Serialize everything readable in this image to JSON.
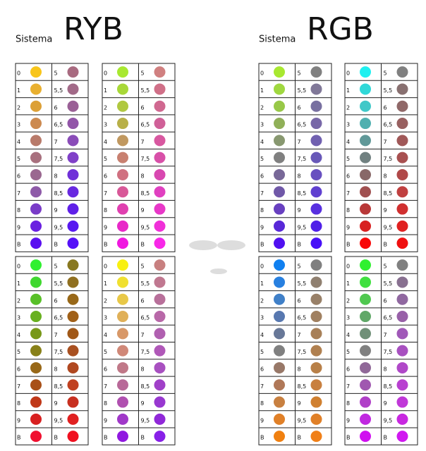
{
  "headings": [
    {
      "prefix": "Sistema",
      "title": "RYB"
    },
    {
      "prefix": "Sistema",
      "title": "RGB"
    }
  ],
  "labels_a": [
    "0",
    "1",
    "2",
    "3",
    "4",
    "5",
    "6",
    "7",
    "8",
    "9",
    "B"
  ],
  "labels_b": [
    "5",
    "5,5",
    "6",
    "6,5",
    "7",
    "7,5",
    "8",
    "8,5",
    "9",
    "9,5",
    "B"
  ],
  "tables": [
    {
      "colors_a": [
        "#f8c51a",
        "#e9b030",
        "#dca036",
        "#cc8a50",
        "#b87a6a",
        "#a8707e",
        "#9a6890",
        "#8e5aa8",
        "#7a3cc8",
        "#6a20e0",
        "#5a10f0"
      ],
      "colors_b": [
        "#a86a80",
        "#a26a88",
        "#9a6096",
        "#9255a8",
        "#8a4cb8",
        "#8040c8",
        "#7030d8",
        "#6828e0",
        "#6020e8",
        "#5818f0",
        "#5510f8"
      ]
    },
    {
      "colors_a": [
        "#a8e830",
        "#a8d838",
        "#b0c840",
        "#b8b048",
        "#c09860",
        "#c88070",
        "#d07080",
        "#d85898",
        "#e040b0",
        "#e828c8",
        "#f018e0"
      ],
      "colors_b": [
        "#d08080",
        "#d07088",
        "#d06890",
        "#d06098",
        "#d858a0",
        "#d850a8",
        "#d848b0",
        "#e040c0",
        "#e838c8",
        "#f030d8",
        "#f828e8"
      ]
    },
    {
      "colors_a": [
        "#a8e830",
        "#a0d840",
        "#98c848",
        "#90b058",
        "#889870",
        "#808080",
        "#786898",
        "#7058a8",
        "#6840c0",
        "#5828d8",
        "#5010f0"
      ],
      "colors_b": [
        "#808080",
        "#807898",
        "#7870a0",
        "#7868a8",
        "#7060b0",
        "#6858b8",
        "#6850c0",
        "#6040d0",
        "#5830e0",
        "#5020e8",
        "#4810f8"
      ]
    },
    {
      "colors_a": [
        "#20f0f0",
        "#30d8d8",
        "#40c8c8",
        "#50b0b0",
        "#609898",
        "#708080",
        "#886868",
        "#a05050",
        "#b83838",
        "#d82020",
        "#f80808"
      ],
      "colors_b": [
        "#808080",
        "#887070",
        "#906868",
        "#986060",
        "#a05858",
        "#a85050",
        "#b04848",
        "#c04040",
        "#d03030",
        "#e02020",
        "#f01010"
      ]
    },
    {
      "colors_a": [
        "#30f030",
        "#40d830",
        "#58c028",
        "#68b020",
        "#789818",
        "#888018",
        "#986818",
        "#a85018",
        "#c03818",
        "#d82020",
        "#f01030"
      ],
      "colors_b": [
        "#887820",
        "#907020",
        "#986818",
        "#a06018",
        "#a05818",
        "#a85020",
        "#b04820",
        "#c04020",
        "#c83020",
        "#e02020",
        "#f01020"
      ]
    },
    {
      "colors_a": [
        "#f8f010",
        "#f0e030",
        "#e8c848",
        "#e0b058",
        "#d89868",
        "#d08878",
        "#c07888",
        "#b86898",
        "#b050b0",
        "#a038c8",
        "#9018e0"
      ],
      "colors_b": [
        "#c88080",
        "#c07890",
        "#b8709a",
        "#b868a8",
        "#b060b0",
        "#b058b8",
        "#a850c0",
        "#a040c8",
        "#9838d0",
        "#9028d8",
        "#8820e8"
      ]
    },
    {
      "colors_a": [
        "#1080f0",
        "#2880e0",
        "#4080c8",
        "#5878b0",
        "#687898",
        "#808080",
        "#987868",
        "#b07858",
        "#c88040",
        "#e08028",
        "#f08010"
      ],
      "colors_b": [
        "#808080",
        "#908070",
        "#988068",
        "#a08060",
        "#a88058",
        "#b08050",
        "#b88048",
        "#c88040",
        "#d08030",
        "#e08028",
        "#f08018"
      ]
    },
    {
      "colors_a": [
        "#30f030",
        "#40e040",
        "#50c850",
        "#60a868",
        "#709078",
        "#808080",
        "#906898",
        "#a058b0",
        "#b040c8",
        "#c028e0",
        "#d010f0"
      ],
      "colors_b": [
        "#808080",
        "#887090",
        "#9068a0",
        "#9860a8",
        "#a058b8",
        "#a850c0",
        "#b048c8",
        "#b840d0",
        "#c038d8",
        "#c828e0",
        "#d018f0"
      ]
    }
  ]
}
